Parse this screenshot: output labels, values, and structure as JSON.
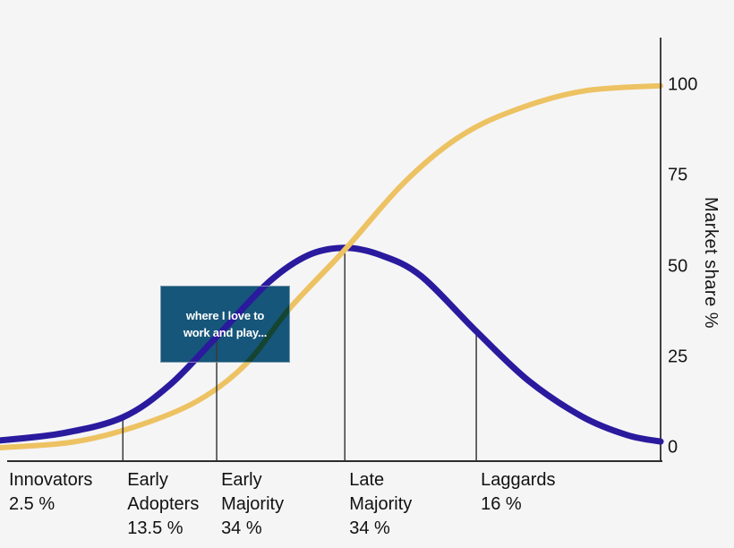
{
  "figure": {
    "background": "#f5f5f6",
    "axis_color": "#2d2d2d",
    "divider_color": "#3a3a3a",
    "label_color": "#111111"
  },
  "chart_data": {
    "type": "line",
    "ylabel": "Market share %",
    "y_ticks": [
      0,
      25,
      50,
      75,
      100
    ],
    "ylim": [
      0,
      110
    ],
    "grid": false,
    "legend": "none",
    "categories": [
      {
        "name": "Innovators",
        "percent": "2.5 %",
        "label": "Innovators\n2.5 %"
      },
      {
        "name": "Early Adopters",
        "percent": "13.5 %",
        "label": "Early\nAdopters\n13.5 %"
      },
      {
        "name": "Early Majority",
        "percent": "34 %",
        "label": "Early\nMajority\n34 %"
      },
      {
        "name": "Late Majority",
        "percent": "34 %",
        "label": "Late\nMajority\n34 %"
      },
      {
        "name": "Laggards",
        "percent": "16 %",
        "label": "Laggards\n16 %"
      }
    ],
    "series": [
      {
        "name": "adopter-groups-bell-curve",
        "color": "#2a1a9e",
        "stroke_width": 7,
        "peak_market_share_pct": 55,
        "points": [
          [
            0,
            2.0
          ],
          [
            9.5,
            4.0
          ],
          [
            18.6,
            8.4
          ],
          [
            25.7,
            17.3
          ],
          [
            32.8,
            30.6
          ],
          [
            40.7,
            45.7
          ],
          [
            46.7,
            53.1
          ],
          [
            52.2,
            55.1
          ],
          [
            57.6,
            53.1
          ],
          [
            63.7,
            47.4
          ],
          [
            72.1,
            32.1
          ],
          [
            80.0,
            18.5
          ],
          [
            88.1,
            8.6
          ],
          [
            94.9,
            3.5
          ],
          [
            100,
            1.7
          ]
        ]
      },
      {
        "name": "cumulative-market-share-s-curve",
        "color": "#edc262",
        "stroke_width": 6,
        "points": [
          [
            0,
            0.0
          ],
          [
            10.8,
            1.5
          ],
          [
            20.3,
            5.7
          ],
          [
            29.8,
            12.8
          ],
          [
            37.3,
            23.2
          ],
          [
            43.8,
            38.3
          ],
          [
            52.2,
            54.6
          ],
          [
            61.0,
            72.8
          ],
          [
            69.1,
            85.2
          ],
          [
            77.2,
            92.6
          ],
          [
            88.1,
            98.3
          ],
          [
            100,
            99.8
          ]
        ]
      }
    ],
    "segment_dividers": [
      {
        "x": 18.6,
        "top": 8.4
      },
      {
        "x": 32.8,
        "top": 30.6
      },
      {
        "x": 52.2,
        "top": 55.1
      },
      {
        "x": 72.1,
        "top": 32.1
      }
    ]
  },
  "annotation": {
    "text": "where I love to\nwork and play...",
    "color": "#16597e",
    "text_color": "#ffffff"
  }
}
